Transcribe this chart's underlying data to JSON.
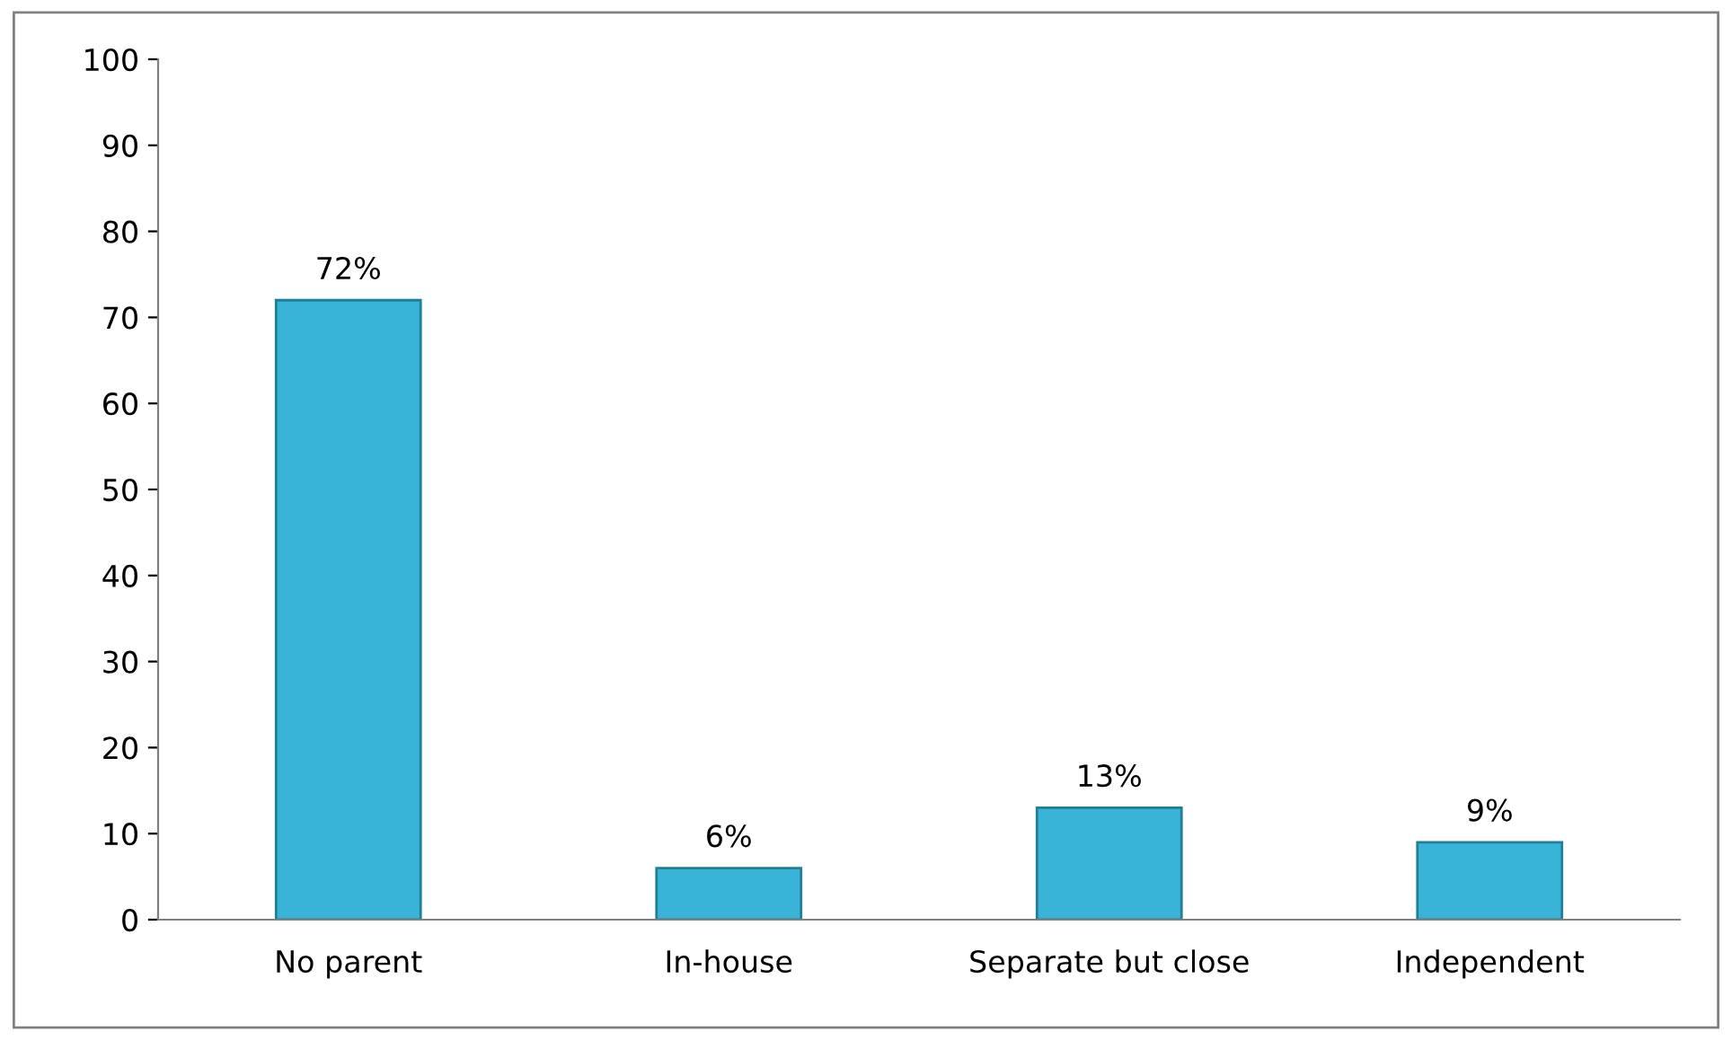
{
  "chart_data": {
    "type": "bar",
    "categories": [
      "No parent",
      "In-house",
      "Separate but close",
      "Independent"
    ],
    "values": [
      72,
      6,
      13,
      9
    ],
    "value_labels": [
      "72%",
      "6%",
      "13%",
      "9%"
    ],
    "color": "#3ab4d6",
    "ylim": [
      0,
      100
    ],
    "yticks": [
      0,
      10,
      20,
      30,
      40,
      50,
      60,
      70,
      80,
      90,
      100
    ],
    "grid": false
  }
}
